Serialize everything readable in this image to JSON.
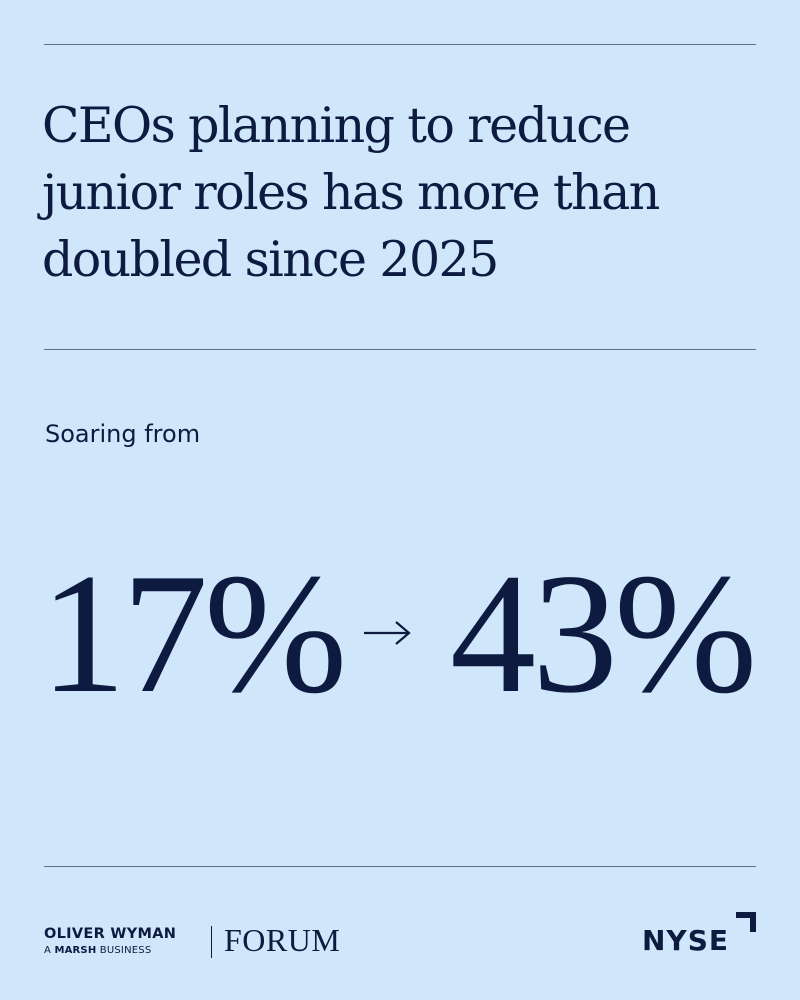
{
  "headline": {
    "lines": [
      "CEOs planning to reduce",
      "junior roles has more than",
      "doubled since 2025"
    ]
  },
  "subhead": "Soaring from",
  "stats": {
    "from_value": "17%",
    "to_value": "43%",
    "arrow_icon": "right-arrow-icon"
  },
  "footer": {
    "brand_name": "OLIVER WYMAN",
    "brand_tag_prefix": "A",
    "brand_tag_bold": "MARSH",
    "brand_tag_suffix": "BUSINESS",
    "forum": "FORUM",
    "partner": "NYSE"
  },
  "colors": {
    "background": "#cfe6fb",
    "text": "#0d1b40",
    "rule": "#5d6f86"
  }
}
